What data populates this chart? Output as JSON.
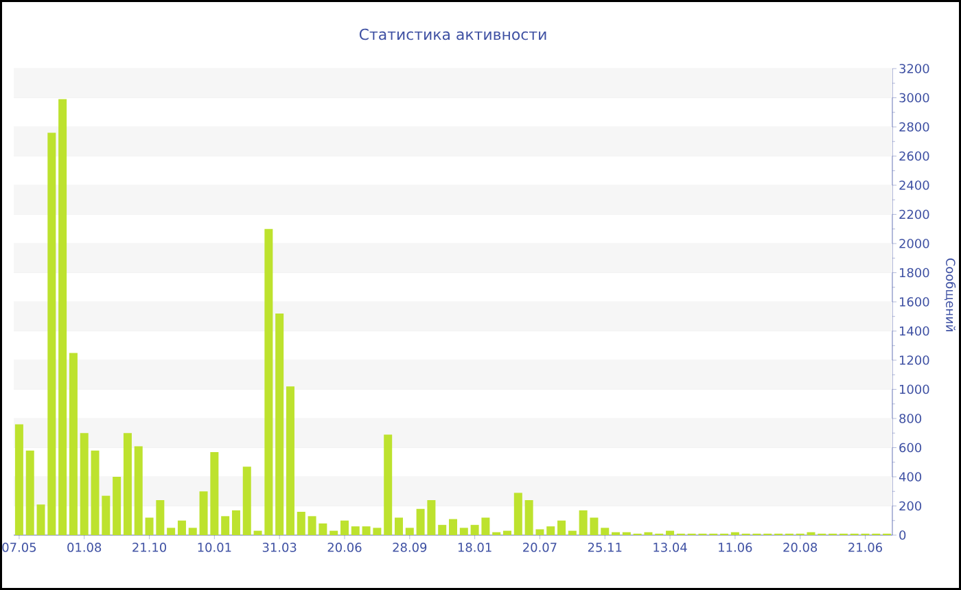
{
  "chart_data": {
    "type": "bar",
    "title": "Статистика активности",
    "ylabel": "Сообщений",
    "categories": [
      "07.05",
      null,
      null,
      null,
      null,
      null,
      "01.08",
      null,
      null,
      null,
      null,
      null,
      "21.10",
      null,
      null,
      null,
      null,
      null,
      "10.01",
      null,
      null,
      null,
      null,
      null,
      "31.03",
      null,
      null,
      null,
      null,
      null,
      "20.06",
      null,
      null,
      null,
      null,
      null,
      "28.09",
      null,
      null,
      null,
      null,
      null,
      "18.01",
      null,
      null,
      null,
      null,
      null,
      "20.07",
      null,
      null,
      null,
      null,
      null,
      "25.11",
      null,
      null,
      null,
      null,
      null,
      "13.04",
      null,
      null,
      null,
      null,
      null,
      "11.06",
      null,
      null,
      null,
      null,
      null,
      "20.08",
      null,
      null,
      null,
      null,
      null,
      "21.06",
      null,
      null
    ],
    "values": [
      760,
      580,
      210,
      2760,
      2990,
      1250,
      700,
      580,
      270,
      400,
      700,
      610,
      120,
      240,
      50,
      100,
      50,
      300,
      570,
      130,
      170,
      470,
      30,
      2100,
      1520,
      1020,
      160,
      130,
      80,
      30,
      100,
      60,
      60,
      50,
      690,
      120,
      50,
      180,
      240,
      70,
      110,
      50,
      70,
      120,
      20,
      30,
      290,
      240,
      40,
      60,
      100,
      30,
      170,
      120,
      50,
      20,
      20,
      10,
      20,
      10,
      30,
      10,
      10,
      10,
      10,
      10,
      20,
      10,
      10,
      10,
      10,
      10,
      10,
      20,
      10,
      10,
      10,
      10,
      10,
      10,
      10
    ],
    "color": "#bde22e",
    "ylim": [
      0,
      3200
    ],
    "yticks": [
      0,
      200,
      400,
      600,
      800,
      1000,
      1200,
      1400,
      1600,
      1800,
      2000,
      2200,
      2400,
      2600,
      2800,
      3000,
      3200
    ],
    "grid": "y"
  }
}
